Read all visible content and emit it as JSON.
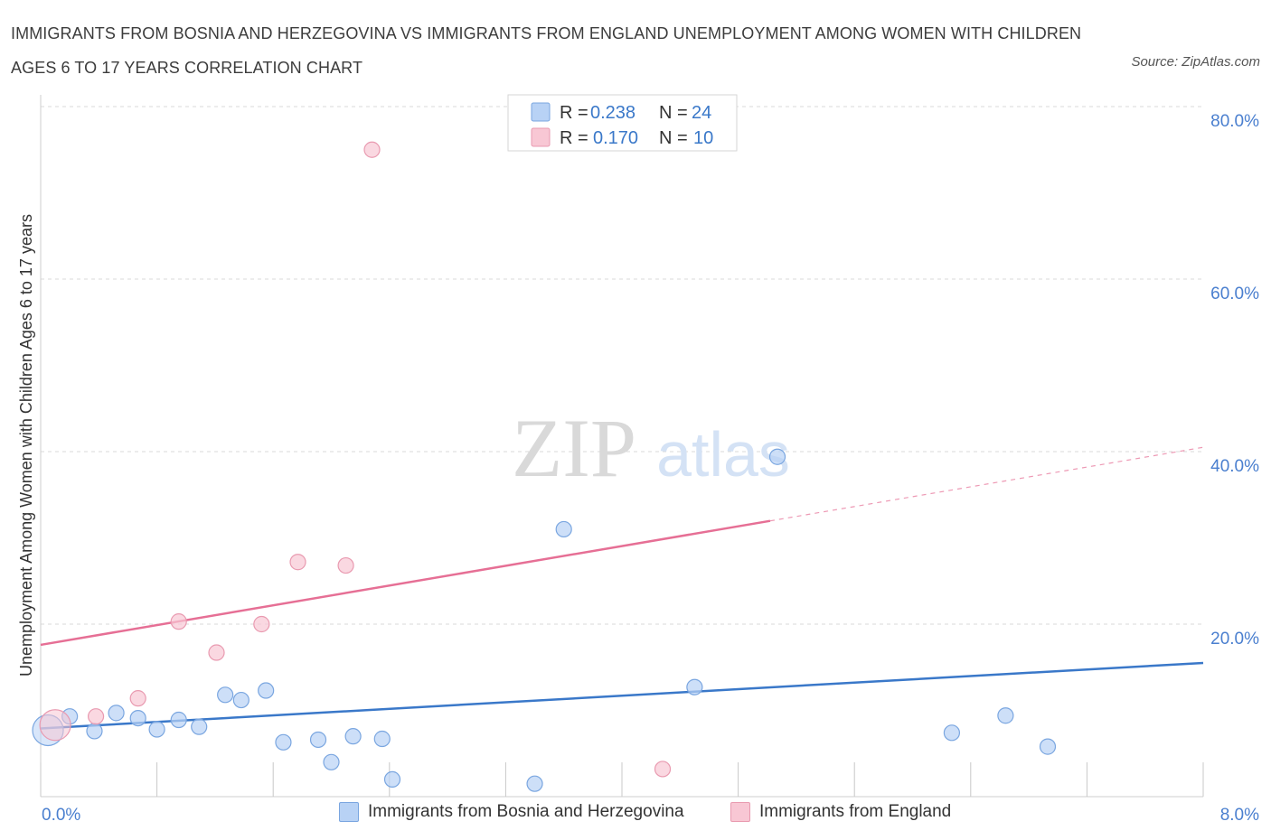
{
  "title": "IMMIGRANTS FROM BOSNIA AND HERZEGOVINA VS IMMIGRANTS FROM ENGLAND UNEMPLOYMENT AMONG WOMEN WITH CHILDREN AGES 6 TO 17 YEARS CORRELATION CHART",
  "source": "Source: ZipAtlas.com",
  "watermark": {
    "zip": "ZIP",
    "atlas": "atlas"
  },
  "colors": {
    "bosnia_fill": "#b8d2f5",
    "bosnia_stroke": "#7aa6e0",
    "bosnia_line": "#3a78c9",
    "england_fill": "#f8c7d4",
    "england_stroke": "#e99ab0",
    "england_line": "#e66f95",
    "axis_label": "#4a7fcf",
    "grid": "#d9d9d9"
  },
  "legend_top": {
    "rows": [
      {
        "r_label": "R =",
        "r_value": "0.238",
        "n_label": "N =",
        "n_value": "24",
        "series": "bosnia"
      },
      {
        "r_label": "R =",
        "r_value": "0.170",
        "n_label": "N =",
        "n_value": "10",
        "series": "england"
      }
    ]
  },
  "legend_bottom": [
    {
      "label": "Immigrants from Bosnia and Herzegovina",
      "series": "bosnia"
    },
    {
      "label": "Immigrants from England",
      "series": "england"
    }
  ],
  "chart_data": {
    "type": "scatter",
    "ylabel": "Unemployment Among Women with Children Ages 6 to 17 years",
    "xlabel": "",
    "xlim": [
      0,
      8
    ],
    "ylim": [
      0,
      80
    ],
    "x_tick_labels": [
      {
        "value": 0,
        "label": "0.0%"
      },
      {
        "value": 8,
        "label": "8.0%"
      }
    ],
    "y_tick_labels": [
      {
        "value": 20,
        "label": "20.0%"
      },
      {
        "value": 40,
        "label": "40.0%"
      },
      {
        "value": 60,
        "label": "60.0%"
      },
      {
        "value": 80,
        "label": "80.0%"
      }
    ],
    "grid": true,
    "series": [
      {
        "name": "Immigrants from Bosnia and Herzegovina",
        "key": "bosnia",
        "points": [
          {
            "x": 0.05,
            "y": 7.7,
            "big": true
          },
          {
            "x": 0.2,
            "y": 9.3
          },
          {
            "x": 0.37,
            "y": 7.6
          },
          {
            "x": 0.52,
            "y": 9.7
          },
          {
            "x": 0.67,
            "y": 9.1
          },
          {
            "x": 0.8,
            "y": 7.8
          },
          {
            "x": 0.95,
            "y": 8.9
          },
          {
            "x": 1.09,
            "y": 8.1
          },
          {
            "x": 1.27,
            "y": 11.8
          },
          {
            "x": 1.38,
            "y": 11.2
          },
          {
            "x": 1.55,
            "y": 12.3
          },
          {
            "x": 1.67,
            "y": 6.3
          },
          {
            "x": 1.91,
            "y": 6.6
          },
          {
            "x": 2.0,
            "y": 4.0
          },
          {
            "x": 2.15,
            "y": 7.0
          },
          {
            "x": 2.35,
            "y": 6.7
          },
          {
            "x": 2.42,
            "y": 2.0
          },
          {
            "x": 3.4,
            "y": 1.5
          },
          {
            "x": 3.6,
            "y": 31.0
          },
          {
            "x": 4.5,
            "y": 12.7
          },
          {
            "x": 5.07,
            "y": 39.4
          },
          {
            "x": 6.27,
            "y": 7.4
          },
          {
            "x": 6.64,
            "y": 9.4
          },
          {
            "x": 6.93,
            "y": 5.8
          }
        ],
        "trend": {
          "x0": 0,
          "y0": 7.9,
          "x1": 8,
          "y1": 15.5,
          "solid_to": 8
        }
      },
      {
        "name": "Immigrants from England",
        "key": "england",
        "points": [
          {
            "x": 0.1,
            "y": 8.3,
            "big": true
          },
          {
            "x": 0.38,
            "y": 9.3
          },
          {
            "x": 0.67,
            "y": 11.4
          },
          {
            "x": 0.95,
            "y": 20.3
          },
          {
            "x": 1.21,
            "y": 16.7
          },
          {
            "x": 1.52,
            "y": 20.0
          },
          {
            "x": 1.77,
            "y": 27.2
          },
          {
            "x": 2.1,
            "y": 26.8
          },
          {
            "x": 2.28,
            "y": 75.0
          },
          {
            "x": 4.28,
            "y": 3.2
          }
        ],
        "trend": {
          "x0": 0,
          "y0": 17.6,
          "x1": 8,
          "y1": 40.5,
          "solid_to": 5.02
        }
      }
    ]
  }
}
